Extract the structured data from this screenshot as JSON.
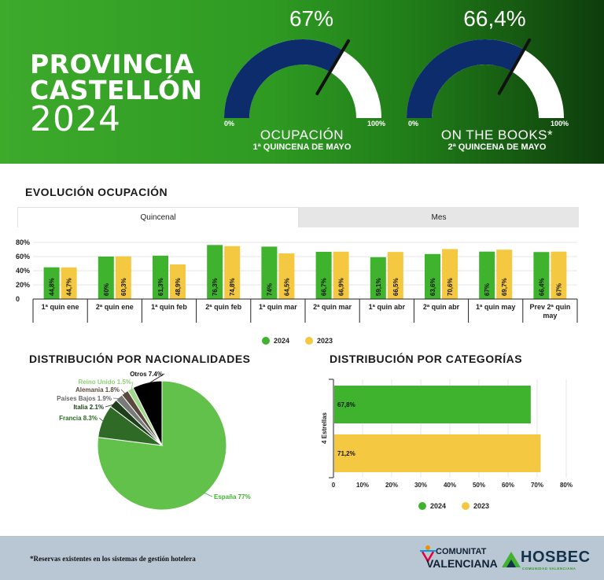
{
  "header": {
    "title_line1": "PROVINCIA",
    "title_line2": "CASTELLÓN",
    "year": "2024"
  },
  "gauges": [
    {
      "value_label": "67%",
      "value": 67,
      "min_label": "0%",
      "max_label": "100%",
      "title": "OCUPACIÓN",
      "subtitle": "1ª QUINCENA DE MAYO"
    },
    {
      "value_label": "66,4%",
      "value": 66.4,
      "min_label": "0%",
      "max_label": "100%",
      "title": "ON THE BOOKS*",
      "subtitle": "2ª QUINCENA DE MAYO"
    }
  ],
  "colors": {
    "green": "#3fb22e",
    "yellow": "#f5c842",
    "gauge_fill": "#0d2c6b",
    "dark_green": "#2e6b25"
  },
  "evolucion": {
    "title": "EVOLUCIÓN OCUPACIÓN",
    "tabs": [
      "Quincenal",
      "Mes"
    ],
    "legend": [
      "2024",
      "2023"
    ]
  },
  "nacionalidades": {
    "title": "DISTRIBUCIÓN POR NACIONALIDADES"
  },
  "categorias": {
    "title": "DISTRIBUCIÓN POR CATEGORÍAS",
    "legend": [
      "2024",
      "2023"
    ]
  },
  "footer": {
    "note": "*Reservas existentes en los sistemas de gestión hotelera",
    "logo1_line1": "COMUNITAT",
    "logo1_line2": "VALENCIANA",
    "logo2_name": "HOSBEC",
    "logo2_sub": "COMUNIDAD VALENCIANA"
  },
  "chart_data": [
    {
      "type": "bar",
      "categories": [
        "1ª quin ene",
        "2ª quin ene",
        "1ª quin feb",
        "2ª quin feb",
        "1ª quin mar",
        "2ª quin mar",
        "1ª quin abr",
        "2ª quin abr",
        "1ª quin may",
        "Prev 2ª quin may"
      ],
      "series": [
        {
          "name": "2024",
          "values": [
            44.8,
            60,
            61.3,
            76.3,
            74,
            66.7,
            59.1,
            63.6,
            67,
            66.4
          ],
          "labels": [
            "44,8%",
            "60%",
            "61,3%",
            "76,3%",
            "74%",
            "66,7%",
            "59,1%",
            "63,6%",
            "67%",
            "66,4%"
          ]
        },
        {
          "name": "2023",
          "values": [
            44.7,
            60.3,
            48.9,
            74.8,
            64.5,
            66.9,
            66.5,
            70.6,
            69.7,
            67
          ],
          "labels": [
            "44,7%",
            "60,3%",
            "48,9%",
            "74,8%",
            "64,5%",
            "66,9%",
            "66,5%",
            "70,6%",
            "69,7%",
            "67%"
          ]
        }
      ],
      "yticks": [
        "0",
        "20%",
        "40%",
        "60%",
        "80%"
      ],
      "ylim": [
        0,
        80
      ]
    },
    {
      "type": "pie",
      "labels": [
        "España 77%",
        "Francia 8.3%",
        "Italia 2.1%",
        "Países Bajos 1.9%",
        "Alemania 1.8%",
        "Reino Unido 1.5%",
        "Otros 7.4%"
      ],
      "values": [
        77,
        8.3,
        2.1,
        1.9,
        1.8,
        1.5,
        7.4
      ],
      "colors": [
        "#62c14a",
        "#2f6b26",
        "#1f3f1a",
        "#7a7a7a",
        "#5a4a3e",
        "#9fd98a",
        "#000000"
      ]
    },
    {
      "type": "bar",
      "orientation": "horizontal",
      "categories": [
        "4 Estrellas"
      ],
      "series": [
        {
          "name": "2024",
          "values": [
            67.8
          ],
          "labels": [
            "67,8%"
          ]
        },
        {
          "name": "2023",
          "values": [
            71.2
          ],
          "labels": [
            "71,2%"
          ]
        }
      ],
      "xticks": [
        "0",
        "10%",
        "20%",
        "30%",
        "40%",
        "50%",
        "60%",
        "70%",
        "80%"
      ],
      "xlim": [
        0,
        80
      ]
    }
  ]
}
